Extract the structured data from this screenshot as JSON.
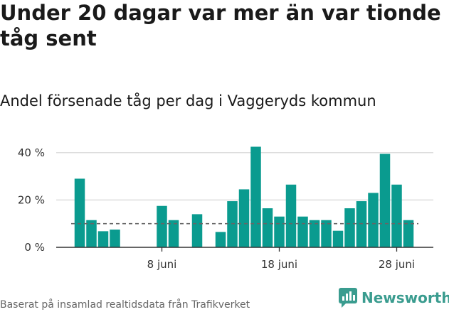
{
  "title": "Under 20 dagar var mer än var tionde tåg sent",
  "subtitle": "Andel försenade tåg per dag i Vaggeryds kommun",
  "source": "Baserat på insamlad realtidsdata från Trafikverket",
  "logo_text": "Newsworthy",
  "colors": {
    "bar": "#0a9b8f",
    "reference": "#666666",
    "grid": "#dddddd",
    "axis": "#333333",
    "logo": "#3a9c8f"
  },
  "chart_data": {
    "type": "bar",
    "title": "Andel försenade tåg per dag i Vaggeryds kommun",
    "xlabel": "",
    "ylabel": "",
    "x_unit": "day of month (juni)",
    "categories": [
      1,
      2,
      3,
      4,
      5,
      6,
      7,
      8,
      9,
      10,
      11,
      12,
      13,
      14,
      15,
      16,
      17,
      18,
      19,
      20,
      21,
      22,
      23,
      24,
      25,
      26,
      27,
      28,
      29
    ],
    "values": [
      29,
      11.5,
      6.8,
      7.5,
      null,
      null,
      null,
      17.5,
      11.5,
      null,
      14,
      null,
      6.5,
      19.5,
      24.5,
      42.5,
      16.5,
      13,
      26.5,
      13,
      11.5,
      11.5,
      7,
      16.5,
      19.5,
      23,
      39.5,
      26.5,
      11.5
    ],
    "reference_line": 10,
    "ylim": [
      0,
      45
    ],
    "yticks": [
      0,
      20,
      40
    ],
    "ytick_labels": [
      "0 %",
      "20 %",
      "40 %"
    ],
    "xticks": [
      8,
      18,
      28
    ],
    "xtick_labels": [
      "8 juni",
      "18 juni",
      "28 juni"
    ],
    "grid": true
  }
}
